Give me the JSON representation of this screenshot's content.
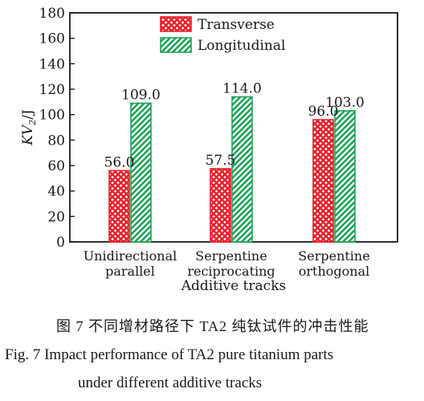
{
  "chart_data": {
    "type": "bar",
    "categories": [
      [
        "Unidirectional",
        "parallel"
      ],
      [
        "Serpentine",
        "reciprocating"
      ],
      [
        "Serpentine",
        "orthogonal"
      ]
    ],
    "series": [
      {
        "name": "Transverse",
        "values": [
          56.0,
          57.5,
          96.0
        ],
        "color": "#e8202a",
        "pattern": "crosshatch"
      },
      {
        "name": "Longitudinal",
        "values": [
          109.0,
          114.0,
          103.0
        ],
        "color": "#1fa45a",
        "pattern": "diagonal"
      }
    ],
    "value_labels": [
      [
        "56.0",
        "57.5",
        "96.0"
      ],
      [
        "109.0",
        "114.0",
        "103.0"
      ]
    ],
    "xlabel": "Additive tracks",
    "ylabel": "KV2/J",
    "ylim": [
      0,
      180
    ],
    "yticks": [
      0,
      20,
      40,
      60,
      80,
      100,
      120,
      140,
      160,
      180
    ],
    "legend_position": "top-center",
    "grid": false
  },
  "caption": {
    "chinese": "图 7   不同增材路径下 TA2 纯钛试件的冲击性能",
    "english_line1": "Fig. 7   Impact performance of TA2 pure titanium parts",
    "english_line2": "under different additive tracks"
  }
}
